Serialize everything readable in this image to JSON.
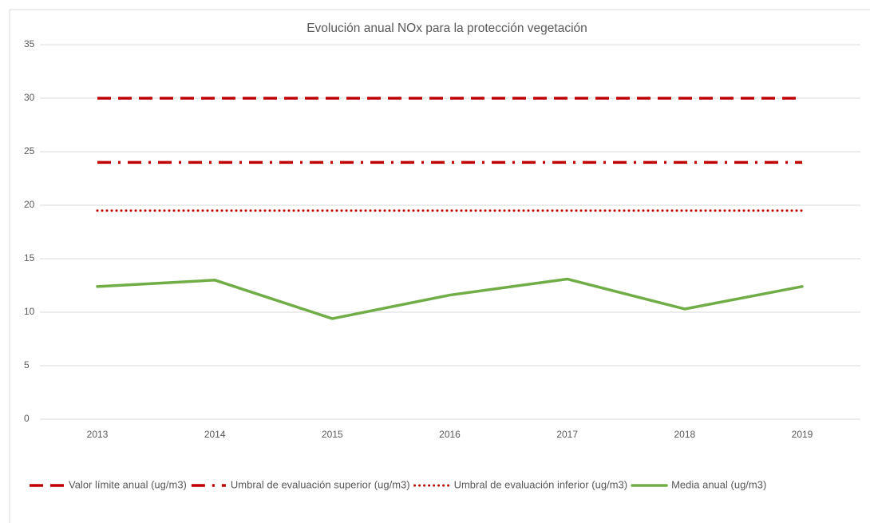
{
  "chart_data": {
    "type": "line",
    "title": "Evolución anual NOx para la protección vegetación",
    "categories": [
      "2013",
      "2014",
      "2015",
      "2016",
      "2017",
      "2018",
      "2019"
    ],
    "series": [
      {
        "name": "Valor límite anual (ug/m3)",
        "color": "#c00000",
        "dash": "dashed",
        "values": [
          30,
          30,
          30,
          30,
          30,
          30,
          30
        ]
      },
      {
        "name": "Umbral de evaluación superior (ug/m3)",
        "color": "#c00000",
        "dash": "dashdot",
        "values": [
          24,
          24,
          24,
          24,
          24,
          24,
          24
        ]
      },
      {
        "name": "Umbral de evaluación inferior (ug/m3)",
        "color": "#c00000",
        "dash": "dotted",
        "values": [
          19.5,
          19.5,
          19.5,
          19.5,
          19.5,
          19.5,
          19.5
        ]
      },
      {
        "name": "Media anual (ug/m3)",
        "color": "#70ad47",
        "dash": "solid",
        "values": [
          12.4,
          13.0,
          9.4,
          11.6,
          13.1,
          10.3,
          12.4
        ]
      }
    ],
    "ylim": [
      0,
      35
    ],
    "yticks": [
      0,
      5,
      10,
      15,
      20,
      25,
      30,
      35
    ],
    "grid": true,
    "legend": "bottom"
  }
}
